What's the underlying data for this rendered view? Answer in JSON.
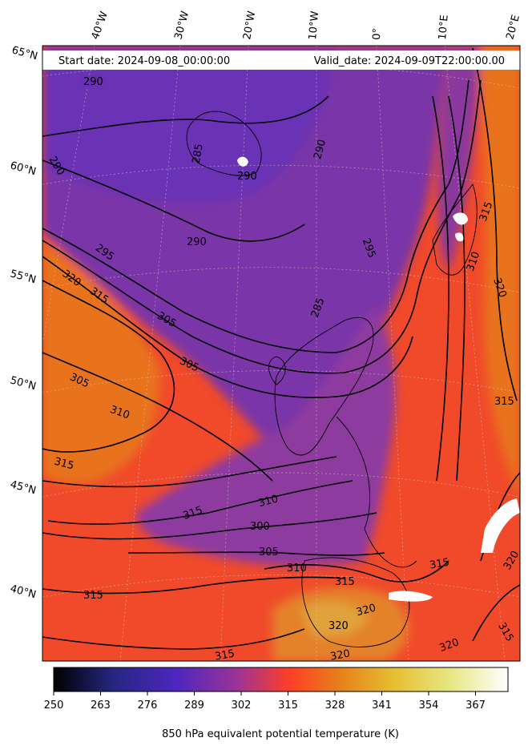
{
  "header": {
    "start_date": "Start date: 2024-09-08_00:00:00",
    "valid_date": "Valid_date: 2024-09-09T22:00:00.00"
  },
  "longitude_labels": [
    "40°W",
    "30°W",
    "20°W",
    "10°W",
    "0°",
    "10°E",
    "20°E"
  ],
  "latitude_labels": [
    "65°N",
    "60°N",
    "55°N",
    "50°N",
    "45°N",
    "40°N"
  ],
  "contour_labels": [
    "290",
    "290",
    "290",
    "290",
    "290",
    "285",
    "295",
    "295",
    "285",
    "320",
    "315",
    "305",
    "305",
    "305",
    "310",
    "315",
    "310",
    "315",
    "300",
    "305",
    "310",
    "315",
    "315",
    "320",
    "320",
    "320",
    "320",
    "315",
    "320",
    "320",
    "315",
    "315",
    "315",
    "315",
    "310"
  ],
  "colorbar": {
    "ticks": [
      "250",
      "263",
      "276",
      "289",
      "302",
      "315",
      "328",
      "341",
      "354",
      "367"
    ],
    "label": "850 hPa equivalent potential temperature (K)",
    "range": [
      250,
      376
    ],
    "colormap": "CMRmap",
    "colors": [
      "#000000",
      "#262680",
      "#4d26bf",
      "#993399",
      "#ff3f26",
      "#e6801a",
      "#e6bf33",
      "#e6e680",
      "#ffffff"
    ]
  }
}
